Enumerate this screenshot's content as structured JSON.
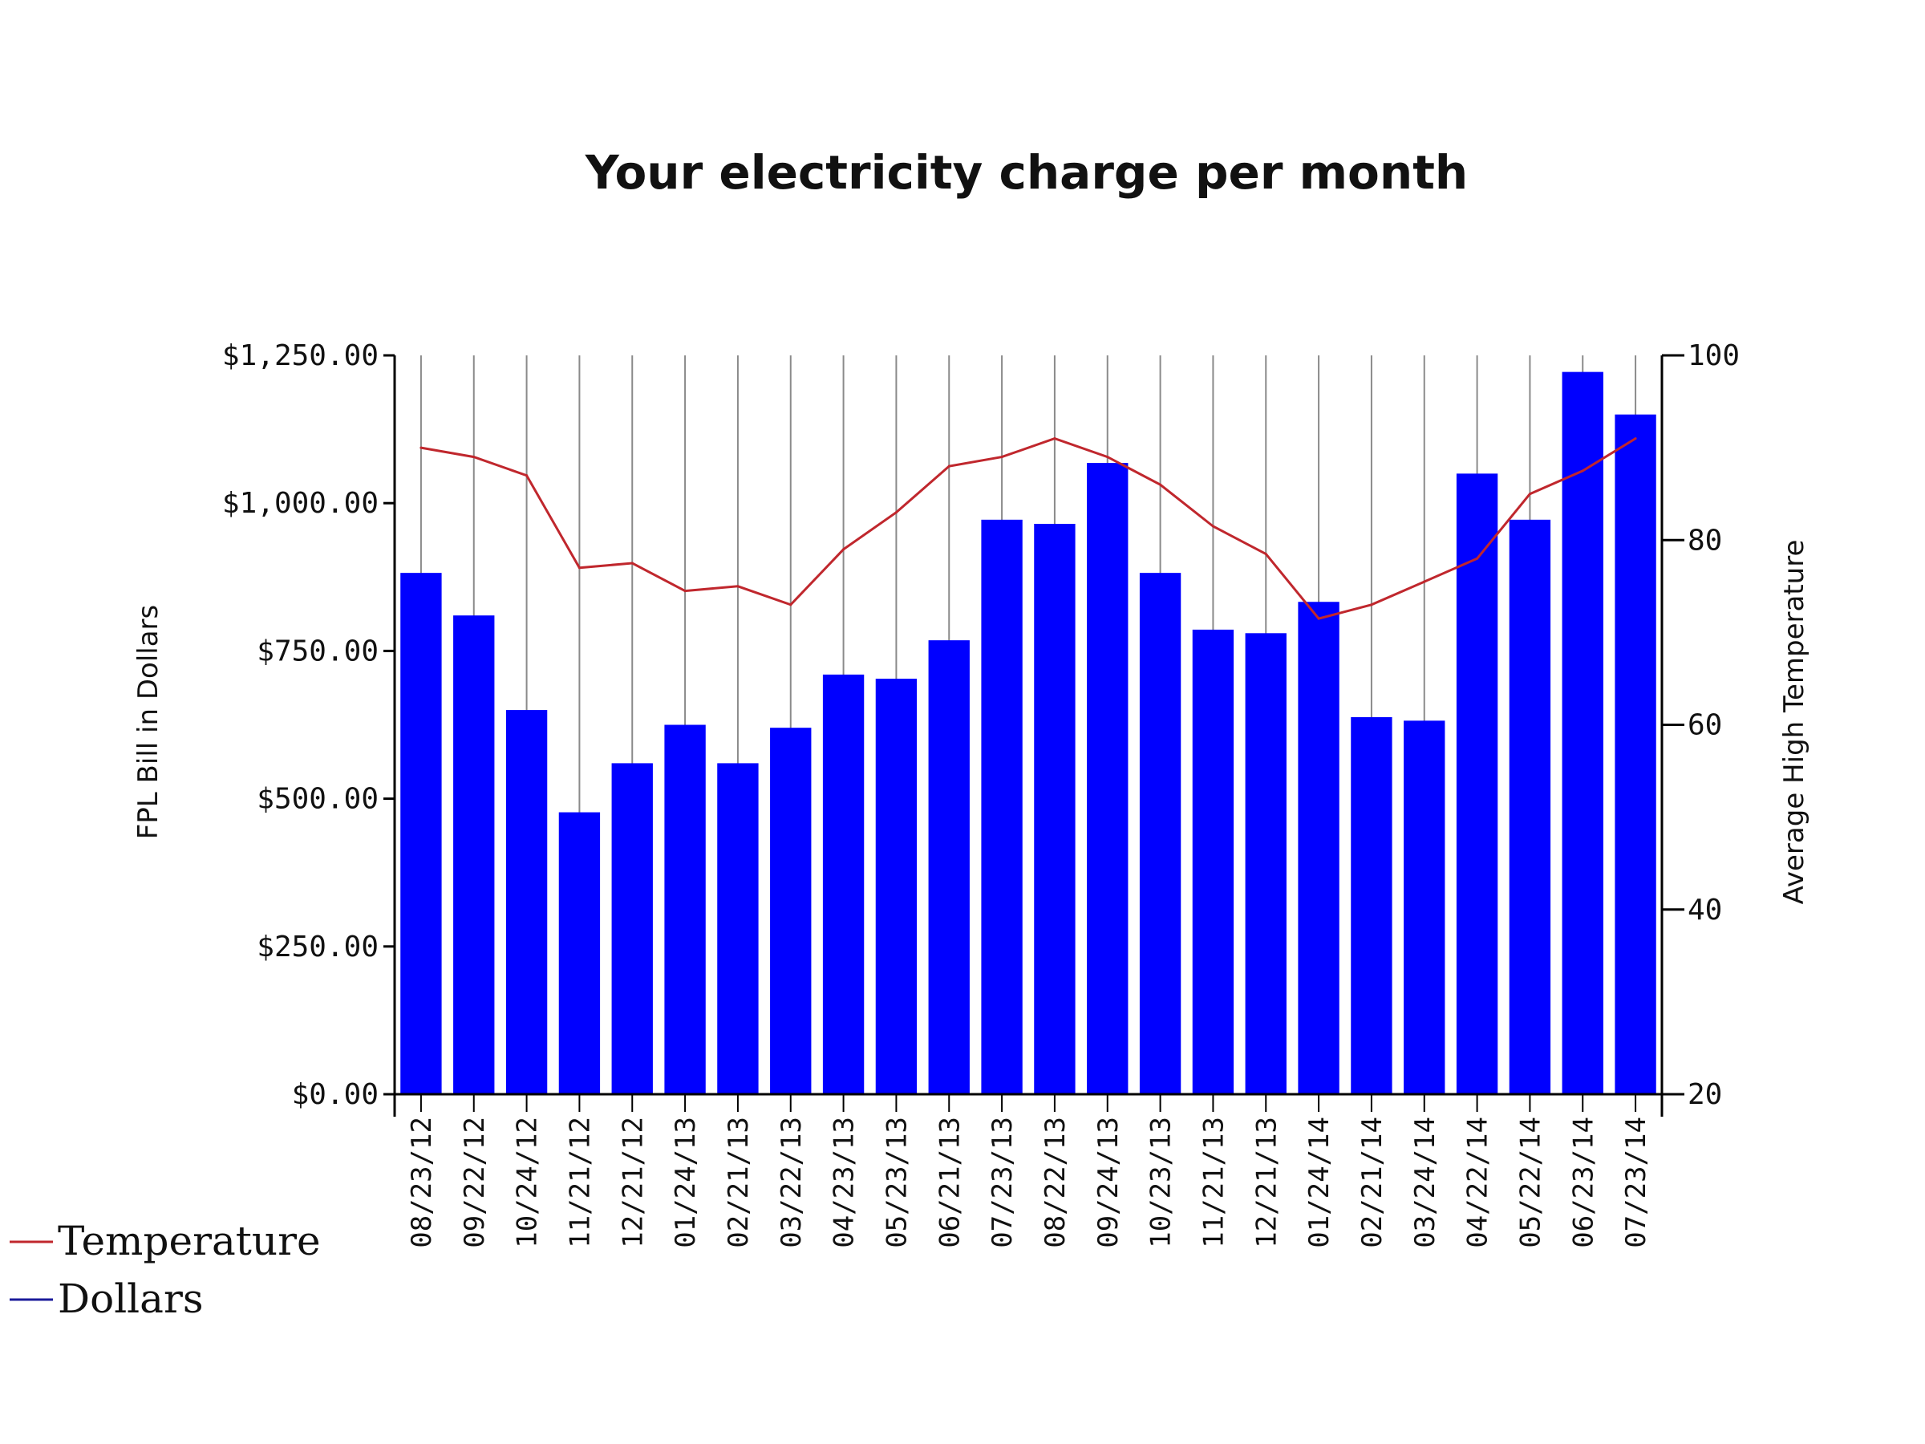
{
  "chart_data": {
    "type": "bar",
    "title": "Your electricity charge per month",
    "ylabel": "FPL Bill in Dollars",
    "y2label": "Average High Temperature",
    "xlabel": "",
    "ylim": [
      0,
      1250
    ],
    "y2lim": [
      20,
      100
    ],
    "yticks": [
      "$0.00",
      "$250.00",
      "$500.00",
      "$750.00",
      "$1,000.00",
      "$1,250.00"
    ],
    "y2ticks": [
      "20",
      "40",
      "60",
      "80",
      "100"
    ],
    "grid": "vertical",
    "legend_position": "bottom-left",
    "categories": [
      "08/23/12",
      "09/22/12",
      "10/24/12",
      "11/21/12",
      "12/21/12",
      "01/24/13",
      "02/21/13",
      "03/22/13",
      "04/23/13",
      "05/23/13",
      "06/21/13",
      "07/23/13",
      "08/22/13",
      "09/24/13",
      "10/23/13",
      "11/21/13",
      "12/21/13",
      "01/24/14",
      "02/21/14",
      "03/24/14",
      "04/22/14",
      "05/22/14",
      "06/23/14",
      "07/23/14"
    ],
    "series": [
      {
        "name": "Dollars",
        "type": "bar",
        "axis": "left",
        "color": "#0000ff",
        "values": [
          882,
          810,
          650,
          477,
          560,
          625,
          560,
          620,
          710,
          703,
          768,
          972,
          965,
          1068,
          882,
          786,
          780,
          833,
          638,
          632,
          1050,
          972,
          1222,
          1150
        ]
      },
      {
        "name": "Temperature",
        "type": "line",
        "axis": "right",
        "color": "#c0272d",
        "values": [
          90,
          89,
          87,
          77,
          77.5,
          74.5,
          75,
          73,
          79,
          83,
          88,
          89,
          91,
          89,
          86,
          81.5,
          78.5,
          71.5,
          73,
          75.5,
          78,
          85,
          87.5,
          91
        ]
      }
    ]
  },
  "legend": {
    "items": [
      {
        "label": "Temperature",
        "color": "#c0272d"
      },
      {
        "label": "Dollars",
        "color": "#1a1a9a"
      }
    ]
  }
}
